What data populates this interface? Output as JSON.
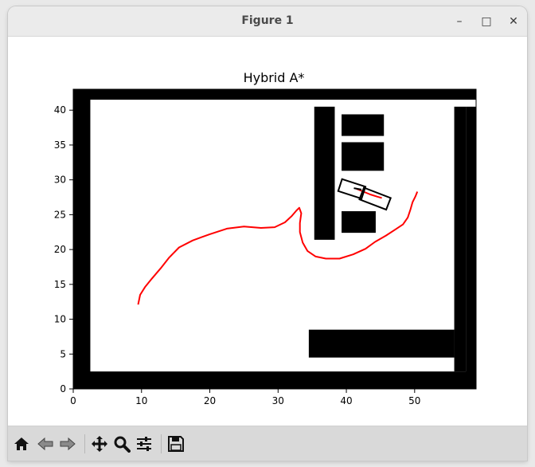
{
  "window": {
    "title": "Figure 1",
    "controls": {
      "minimize": "–",
      "maximize": "□",
      "close": "✕"
    }
  },
  "toolbar": {
    "buttons": [
      {
        "name": "home",
        "icon": "home-icon"
      },
      {
        "name": "back",
        "icon": "arrow-left-icon"
      },
      {
        "name": "forward",
        "icon": "arrow-right-icon"
      },
      {
        "name": "pan",
        "icon": "move-icon"
      },
      {
        "name": "zoom",
        "icon": "magnifier-icon"
      },
      {
        "name": "configure-subplots",
        "icon": "sliders-icon"
      },
      {
        "name": "save",
        "icon": "floppy-disk-icon"
      }
    ]
  },
  "chart_data": {
    "type": "line",
    "title": "Hybrid A*",
    "xlabel": "",
    "ylabel": "",
    "xlim": [
      0,
      59
    ],
    "ylim": [
      0,
      43
    ],
    "xticks": [
      0,
      10,
      20,
      30,
      40,
      50
    ],
    "yticks": [
      0,
      5,
      10,
      15,
      20,
      25,
      30,
      35,
      40
    ],
    "grid": false,
    "obstacles": [
      {
        "x0": 0,
        "x1": 59,
        "y0": 0,
        "y1": 2.5
      },
      {
        "x0": 0,
        "x1": 59,
        "y0": 41.5,
        "y1": 43
      },
      {
        "x0": 0,
        "x1": 2.5,
        "y0": 0,
        "y1": 43
      },
      {
        "x0": 57.5,
        "x1": 59,
        "y0": 0,
        "y1": 40.5
      },
      {
        "x0": 55.8,
        "x1": 57.5,
        "y0": 2.5,
        "y1": 40.5
      },
      {
        "x0": 35.3,
        "x1": 38.3,
        "y0": 21.4,
        "y1": 40.5
      },
      {
        "x0": 39.3,
        "x1": 45.5,
        "y0": 36.3,
        "y1": 39.4
      },
      {
        "x0": 39.3,
        "x1": 45.5,
        "y0": 31.3,
        "y1": 35.4
      },
      {
        "x0": 39.3,
        "x1": 44.3,
        "y0": 22.4,
        "y1": 25.5
      },
      {
        "x0": 34.5,
        "x1": 55.8,
        "y0": 4.5,
        "y1": 8.5
      }
    ],
    "series": [
      {
        "color": "#ff0000",
        "x": [
          9.5,
          9.8,
          10.5,
          11.5,
          12.8,
          14.0,
          15.5,
          17.5,
          20.0,
          22.5,
          25.0,
          27.5,
          29.5,
          31.0,
          32.0,
          32.7,
          33.1,
          33.4,
          33.2,
          33.2,
          33.6,
          34.3,
          35.5,
          37.0,
          39.0,
          41.0,
          42.8,
          44.2,
          45.8,
          47.2,
          48.3,
          49.0,
          49.4,
          49.7,
          50.1,
          50.4
        ],
        "y": [
          12.1,
          13.5,
          14.6,
          15.8,
          17.3,
          18.8,
          20.3,
          21.3,
          22.2,
          23.0,
          23.3,
          23.1,
          23.2,
          23.9,
          24.8,
          25.6,
          26.0,
          25.2,
          23.8,
          22.5,
          21.0,
          19.8,
          19.0,
          18.7,
          18.7,
          19.3,
          20.1,
          21.1,
          22.0,
          22.9,
          23.6,
          24.6,
          25.8,
          26.8,
          27.6,
          28.3
        ]
      },
      {
        "color": "#ff0000",
        "x": [
          41.5,
          42.5,
          43.5,
          44.5,
          45.2
        ],
        "y": [
          28.7,
          28.3,
          27.9,
          27.6,
          27.4
        ]
      }
    ],
    "vehicle": {
      "color": "#000000",
      "rear_body": {
        "cx": 40.8,
        "cy": 28.7,
        "length": 3.6,
        "width": 1.8,
        "angle_deg": -18
      },
      "front_body": {
        "cx": 44.2,
        "cy": 27.3,
        "length": 4.2,
        "width": 1.8,
        "angle_deg": -21
      },
      "heading_line": {
        "x0": 41.1,
        "y0": 28.8,
        "x1": 42.2,
        "y1": 28.6
      }
    }
  }
}
